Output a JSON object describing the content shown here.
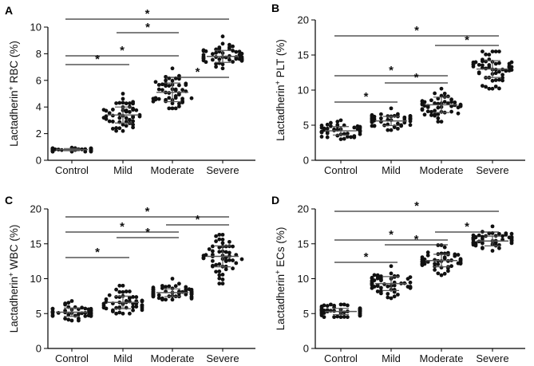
{
  "chart_data": [
    {
      "type": "scatter",
      "panel_label": "A",
      "ylabel_pre": "Lactadherin",
      "ylabel_sup": "+",
      "ylabel_post": " RBC (%)",
      "ylim": [
        0,
        10
      ],
      "yticks": [
        "0",
        "2",
        "4",
        "6",
        "8",
        "10"
      ],
      "categories": [
        "Control",
        "Mild",
        "Moderate",
        "Severe"
      ],
      "groups": [
        {
          "mean": 0.8,
          "sd": 0.08,
          "min": 0.65,
          "max": 0.95,
          "n": 45
        },
        {
          "mean": 3.4,
          "sd": 0.6,
          "min": 2.2,
          "max": 5.0,
          "n": 50
        },
        {
          "mean": 5.1,
          "sd": 0.7,
          "min": 3.9,
          "max": 6.9,
          "n": 50
        },
        {
          "mean": 7.8,
          "sd": 0.45,
          "min": 6.9,
          "max": 9.3,
          "n": 50
        }
      ],
      "comparisons": [
        {
          "from": 0,
          "to": 3,
          "label": "*"
        },
        {
          "from": 0,
          "to": 2,
          "label": "*"
        },
        {
          "from": 0,
          "to": 1,
          "label": "*"
        },
        {
          "from": 2,
          "to": 3,
          "label": "*"
        },
        {
          "from": 1,
          "to": 2,
          "label": "*"
        }
      ]
    },
    {
      "type": "scatter",
      "panel_label": "B",
      "ylabel_pre": "Lactadherin",
      "ylabel_sup": "+",
      "ylabel_post": " PLT (%)",
      "ylim": [
        0,
        20
      ],
      "yticks": [
        "0",
        "5",
        "10",
        "15",
        "20"
      ],
      "categories": [
        "Control",
        "Mild",
        "Moderate",
        "Severe"
      ],
      "groups": [
        {
          "mean": 4.2,
          "sd": 0.6,
          "min": 3.0,
          "max": 5.7,
          "n": 45
        },
        {
          "mean": 5.6,
          "sd": 0.65,
          "min": 4.3,
          "max": 7.4,
          "n": 50
        },
        {
          "mean": 7.9,
          "sd": 1.1,
          "min": 5.5,
          "max": 10.2,
          "n": 50
        },
        {
          "mean": 13.0,
          "sd": 1.2,
          "min": 10.2,
          "max": 15.5,
          "n": 55
        }
      ],
      "comparisons": [
        {
          "from": 0,
          "to": 3,
          "label": "*"
        },
        {
          "from": 2,
          "to": 3,
          "label": "*"
        },
        {
          "from": 0,
          "to": 2,
          "label": "*"
        },
        {
          "from": 1,
          "to": 2,
          "label": "*"
        },
        {
          "from": 0,
          "to": 1,
          "label": "*"
        }
      ]
    },
    {
      "type": "scatter",
      "panel_label": "C",
      "ylabel_pre": "Lactadherin",
      "ylabel_sup": "+",
      "ylabel_post": " WBC (%)",
      "ylim": [
        0,
        20
      ],
      "yticks": [
        "0",
        "5",
        "10",
        "15",
        "20"
      ],
      "categories": [
        "Control",
        "Mild",
        "Moderate",
        "Severe"
      ],
      "groups": [
        {
          "mean": 5.2,
          "sd": 0.6,
          "min": 4.0,
          "max": 6.8,
          "n": 45
        },
        {
          "mean": 6.6,
          "sd": 0.9,
          "min": 5.0,
          "max": 9.0,
          "n": 50
        },
        {
          "mean": 8.0,
          "sd": 0.55,
          "min": 7.0,
          "max": 10.0,
          "n": 55
        },
        {
          "mean": 13.2,
          "sd": 1.5,
          "min": 9.3,
          "max": 16.3,
          "n": 55
        }
      ],
      "comparisons": [
        {
          "from": 0,
          "to": 3,
          "label": "*"
        },
        {
          "from": 2,
          "to": 3,
          "label": "*"
        },
        {
          "from": 0,
          "to": 2,
          "label": "*"
        },
        {
          "from": 1,
          "to": 2,
          "label": "*"
        },
        {
          "from": 0,
          "to": 1,
          "label": "*"
        }
      ]
    },
    {
      "type": "scatter",
      "panel_label": "D",
      "ylabel_pre": "Lactadherin",
      "ylabel_sup": "+",
      "ylabel_post": " ECs (%)",
      "ylim": [
        0,
        20
      ],
      "yticks": [
        "0",
        "5",
        "10",
        "15",
        "20"
      ],
      "categories": [
        "Control",
        "Mild",
        "Moderate",
        "Severe"
      ],
      "groups": [
        {
          "mean": 5.3,
          "sd": 0.45,
          "min": 4.5,
          "max": 6.3,
          "n": 55
        },
        {
          "mean": 9.3,
          "sd": 1.0,
          "min": 7.2,
          "max": 11.8,
          "n": 55
        },
        {
          "mean": 12.6,
          "sd": 0.9,
          "min": 10.5,
          "max": 14.8,
          "n": 55
        },
        {
          "mean": 15.4,
          "sd": 0.7,
          "min": 14.0,
          "max": 17.5,
          "n": 55
        }
      ],
      "comparisons": [
        {
          "from": 0,
          "to": 3,
          "label": "*"
        },
        {
          "from": 2,
          "to": 3,
          "label": "*"
        },
        {
          "from": 0,
          "to": 2,
          "label": "*"
        },
        {
          "from": 1,
          "to": 2,
          "label": "*"
        },
        {
          "from": 0,
          "to": 1,
          "label": "*"
        }
      ]
    }
  ]
}
